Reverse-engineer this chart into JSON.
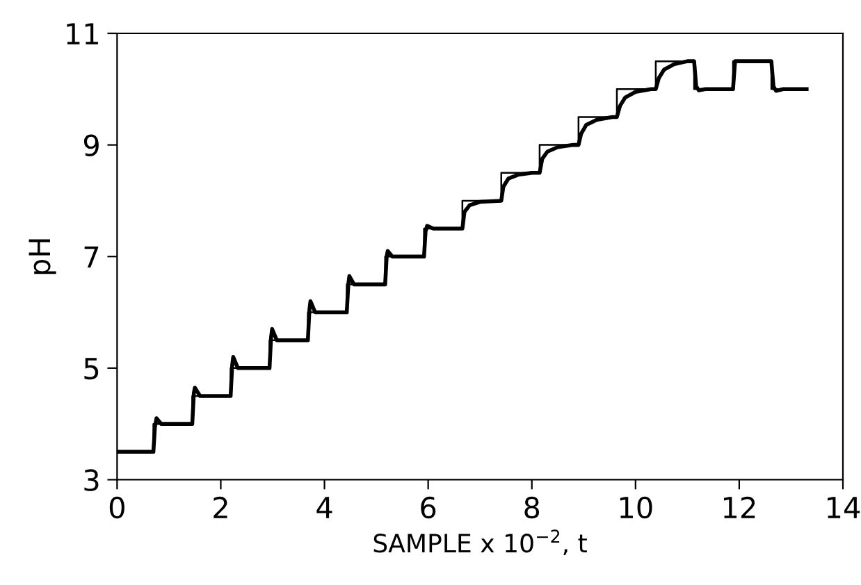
{
  "chart_data": {
    "type": "line",
    "xlabel": "SAMPLE x 10$^{−2}$, t",
    "ylabel": "pH",
    "xlim": [
      0,
      14
    ],
    "xticks": [
      0,
      2,
      4,
      6,
      8,
      10,
      12,
      14
    ],
    "ylim": [
      3,
      11
    ],
    "yticks": [
      3,
      5,
      7,
      9,
      11
    ],
    "grid": false,
    "legend": false,
    "series": [
      {
        "type": "step",
        "color": "#000000",
        "x": [
          0,
          0.7,
          1.45,
          2.19,
          2.94,
          3.68,
          4.43,
          5.17,
          5.92,
          6.66,
          7.41,
          8.15,
          8.9,
          9.64,
          10.39,
          11.13,
          11.88,
          12.62,
          13.3
        ],
        "values": [
          3.5,
          4,
          4.5,
          5,
          5.5,
          6,
          6.5,
          7,
          7.5,
          8,
          8.5,
          9,
          9.5,
          10,
          10.5,
          10,
          10.5,
          10,
          10
        ]
      },
      {
        "color": "#000000",
        "x": [
          0,
          0.7,
          0.73,
          0.76,
          0.85,
          1.45,
          1.48,
          1.5,
          1.6,
          2.19,
          2.22,
          2.24,
          2.33,
          2.94,
          2.97,
          2.99,
          3.08,
          3.68,
          3.71,
          3.73,
          3.82,
          4.43,
          4.46,
          4.48,
          4.57,
          5.17,
          5.2,
          5.22,
          5.31,
          5.92,
          5.95,
          5.98,
          6.1,
          6.66,
          6.7,
          6.8,
          7.0,
          7.41,
          7.45,
          7.55,
          7.75,
          8.0,
          8.15,
          8.2,
          8.3,
          8.5,
          8.8,
          8.9,
          8.95,
          9.05,
          9.25,
          9.55,
          9.64,
          9.7,
          9.8,
          10.0,
          10.3,
          10.39,
          10.45,
          10.55,
          10.75,
          11.0,
          11.13,
          11.17,
          11.22,
          11.35,
          11.88,
          11.92,
          12.62,
          12.66,
          12.71,
          12.85,
          13.3
        ],
        "values": [
          3.5,
          3.5,
          3.95,
          4.1,
          4.0,
          4.0,
          4.55,
          4.65,
          4.5,
          4.5,
          5.05,
          5.2,
          5.0,
          5.0,
          5.55,
          5.7,
          5.5,
          5.5,
          6.05,
          6.2,
          6.0,
          6.0,
          6.5,
          6.65,
          6.5,
          6.5,
          7.0,
          7.1,
          7.0,
          7.0,
          7.45,
          7.55,
          7.5,
          7.5,
          7.8,
          7.92,
          7.98,
          8.0,
          8.25,
          8.4,
          8.47,
          8.5,
          8.5,
          8.75,
          8.88,
          8.96,
          9.0,
          9.0,
          9.2,
          9.36,
          9.45,
          9.5,
          9.5,
          9.7,
          9.85,
          9.95,
          10.0,
          10.0,
          10.2,
          10.35,
          10.45,
          10.5,
          10.5,
          10.05,
          9.98,
          10.0,
          10.0,
          10.5,
          10.5,
          10.05,
          9.97,
          10.0,
          10.0
        ]
      }
    ]
  }
}
